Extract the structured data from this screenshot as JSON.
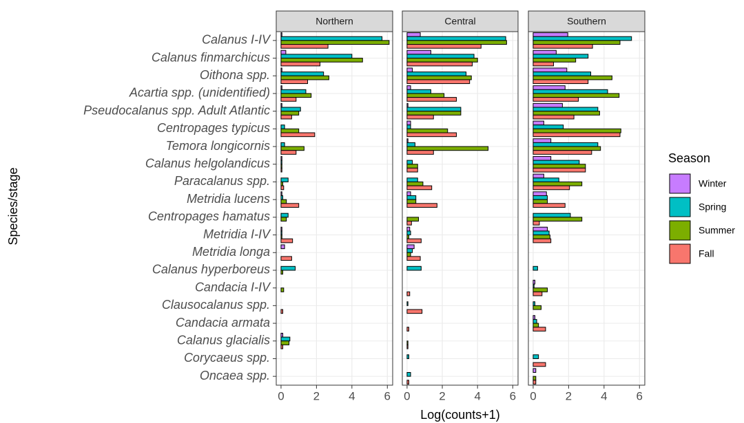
{
  "chart_data": {
    "type": "bar",
    "orientation": "horizontal",
    "x_label": "Log(counts+1)",
    "y_label": "Species/stage",
    "legend_title": "Season",
    "grid": true,
    "xlim": [
      -0.27,
      6.3
    ],
    "xticks": [
      0,
      2,
      4,
      6
    ],
    "categories": [
      "Calanus I-IV",
      "Calanus finmarchicus",
      "Oithona spp.",
      "Acartia spp. (unidentified)",
      "Pseudocalanus spp. Adult Atlantic",
      "Centropages typicus",
      "Temora longicornis",
      "Calanus helgolandicus",
      "Paracalanus spp.",
      "Metridia lucens",
      "Centropages hamatus",
      "Metridia I-IV",
      "Metridia longa",
      "Calanus hyperboreus",
      "Candacia I-IV",
      "Clausocalanus spp.",
      "Candacia armata",
      "Calanus glacialis",
      "Corycaeus spp.",
      "Oncaea spp."
    ],
    "series": [
      {
        "name": "Winter",
        "color": "#c77cff"
      },
      {
        "name": "Spring",
        "color": "#00bfc4"
      },
      {
        "name": "Summer",
        "color": "#7cae00"
      },
      {
        "name": "Fall",
        "color": "#f8766d"
      }
    ],
    "facets": [
      {
        "title": "Northern",
        "values": [
          [
            0.05,
            0.27,
            0.05,
            0.05,
            0.05,
            0,
            0,
            0.05,
            0,
            0.05,
            0,
            0.05,
            0.2,
            0,
            0,
            0,
            0,
            0.1,
            0,
            0
          ],
          [
            5.7,
            4.0,
            2.4,
            1.4,
            1.1,
            0.2,
            0.2,
            0.05,
            0.4,
            0.1,
            0.4,
            0.05,
            0,
            0.8,
            0,
            0,
            0,
            0.5,
            0,
            0
          ],
          [
            6.1,
            4.6,
            2.7,
            1.7,
            1.0,
            1.0,
            1.3,
            0.05,
            0.1,
            0.3,
            0.3,
            0.05,
            0,
            0.1,
            0.15,
            0,
            0,
            0.45,
            0,
            0
          ],
          [
            2.65,
            2.2,
            1.5,
            0.85,
            0.6,
            1.9,
            0.85,
            0.05,
            0.15,
            1.0,
            0,
            0.65,
            0.6,
            0,
            0,
            0.1,
            0,
            0.1,
            0,
            0
          ]
        ]
      },
      {
        "title": "Central",
        "values": [
          [
            0.75,
            1.35,
            0.3,
            0.2,
            0.05,
            0.2,
            0.05,
            0,
            0,
            0.2,
            0,
            0.15,
            0.4,
            0,
            0,
            0,
            0,
            0,
            0,
            0
          ],
          [
            5.6,
            3.8,
            3.35,
            1.35,
            3.05,
            0.2,
            0.45,
            0.3,
            0.6,
            0.5,
            0,
            0.2,
            0.3,
            0.8,
            0,
            0.05,
            0,
            0,
            0.1,
            0.2
          ],
          [
            5.65,
            4.0,
            3.65,
            2.1,
            3.05,
            2.3,
            4.6,
            0.6,
            0.9,
            0.5,
            0.65,
            0.1,
            0.2,
            0,
            0,
            0,
            0,
            0.05,
            0,
            0
          ],
          [
            4.2,
            3.7,
            3.55,
            2.8,
            1.5,
            2.8,
            1.5,
            0.6,
            1.4,
            1.7,
            0.25,
            0.8,
            0.75,
            0,
            0.15,
            0.85,
            0.1,
            0.05,
            0,
            0.1
          ]
        ]
      },
      {
        "title": "Southern",
        "values": [
          [
            1.95,
            1.3,
            1.9,
            1.8,
            1.65,
            0.6,
            1.0,
            1.0,
            0.6,
            0.75,
            0,
            0.8,
            0,
            0,
            0.1,
            0,
            0.1,
            0,
            0,
            0.15
          ],
          [
            5.55,
            3.1,
            3.25,
            4.2,
            3.65,
            1.7,
            3.65,
            2.6,
            1.45,
            0.8,
            2.1,
            0.9,
            0,
            0.25,
            0.05,
            0.1,
            0.2,
            0,
            0.3,
            0
          ],
          [
            4.9,
            2.4,
            4.45,
            4.85,
            3.75,
            4.95,
            3.8,
            2.95,
            2.75,
            0.8,
            2.75,
            0.95,
            0,
            0,
            0.8,
            0.45,
            0.3,
            0,
            0,
            0.15
          ],
          [
            3.35,
            1.15,
            3.1,
            2.55,
            2.3,
            4.9,
            3.3,
            2.95,
            2.05,
            1.8,
            0.35,
            1.0,
            0,
            0,
            0.5,
            0,
            0.7,
            0,
            0.7,
            0.15
          ]
        ]
      }
    ]
  }
}
